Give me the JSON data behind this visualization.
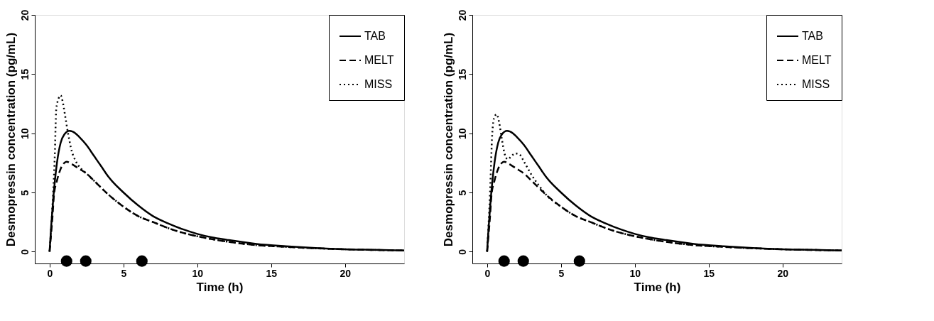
{
  "chart_data": [
    {
      "type": "line",
      "xlabel": "Time (h)",
      "ylabel": "Desmopressin concentration (pg/mL)",
      "xlim": [
        -1,
        24
      ],
      "ylim": [
        -1,
        20
      ],
      "xticks": [
        0,
        5,
        10,
        15,
        20
      ],
      "yticks": [
        0,
        5,
        10,
        15,
        20
      ],
      "grid": false,
      "legend": "top right",
      "marker": "none",
      "series": [
        {
          "name": "TAB",
          "color": "#000000",
          "line_style": "solid",
          "x": [
            0,
            0.1,
            0.25,
            0.5,
            0.75,
            1,
            1.35,
            1.75,
            2,
            2.5,
            3,
            3.5,
            4,
            5,
            6,
            7,
            8,
            9,
            10,
            11,
            12,
            14,
            16,
            18,
            20,
            22,
            24
          ],
          "values": [
            0,
            2,
            4.5,
            7.5,
            9.2,
            9.9,
            10.2,
            10,
            9.7,
            9,
            8.1,
            7.2,
            6.3,
            5,
            3.9,
            3,
            2.4,
            1.9,
            1.5,
            1.2,
            1,
            0.65,
            0.45,
            0.3,
            0.2,
            0.15,
            0.1
          ]
        },
        {
          "name": "MELT",
          "color": "#000000",
          "line_style": "dashed",
          "x": [
            0,
            0.2,
            0.3,
            0.5,
            0.75,
            1,
            1.15,
            1.5,
            2,
            2.5,
            3,
            4,
            5,
            6,
            7,
            8,
            9,
            10,
            11,
            12,
            14,
            16,
            18,
            20,
            22,
            24
          ],
          "values": [
            0,
            3,
            4.8,
            6,
            7,
            7.5,
            7.6,
            7.4,
            7,
            6.6,
            6,
            4.8,
            3.8,
            3,
            2.5,
            2,
            1.6,
            1.3,
            1.05,
            0.85,
            0.55,
            0.4,
            0.28,
            0.2,
            0.14,
            0.1
          ]
        },
        {
          "name": "MISS",
          "color": "#000000",
          "line_style": "dotted",
          "x": [
            0,
            0.2,
            0.35,
            0.45,
            0.6,
            0.75,
            0.9,
            1.05,
            1.25,
            1.5,
            1.75,
            2,
            2.5,
            3,
            4,
            5,
            6,
            7,
            8,
            9,
            10,
            11,
            12,
            14,
            16,
            18,
            20,
            22,
            24
          ],
          "values": [
            0,
            4,
            8,
            12,
            12.9,
            13.2,
            12.6,
            11.5,
            10,
            8.5,
            7.7,
            7.2,
            6.6,
            6,
            4.8,
            3.8,
            3,
            2.5,
            2,
            1.6,
            1.3,
            1.05,
            0.85,
            0.55,
            0.4,
            0.28,
            0.2,
            0.14,
            0.1
          ]
        },
        {
          "type": "scatter",
          "color": "#000000",
          "marker": "circle",
          "x": [
            1.15,
            2.45,
            6.25
          ],
          "values": [
            -0.8,
            -0.8,
            -0.8
          ]
        }
      ]
    },
    {
      "type": "line",
      "xlabel": "Time (h)",
      "ylabel": "Desmopressin concentration (pg/mL)",
      "xlim": [
        -1,
        24
      ],
      "ylim": [
        -1,
        20
      ],
      "xticks": [
        0,
        5,
        10,
        15,
        20
      ],
      "yticks": [
        0,
        5,
        10,
        15,
        20
      ],
      "grid": false,
      "legend": "top right",
      "marker": "none",
      "series": [
        {
          "name": "TAB",
          "color": "#000000",
          "line_style": "solid",
          "x": [
            0,
            0.1,
            0.25,
            0.5,
            0.75,
            1,
            1.35,
            1.75,
            2,
            2.5,
            3,
            3.5,
            4,
            5,
            6,
            7,
            8,
            9,
            10,
            11,
            12,
            14,
            16,
            18,
            20,
            22,
            24
          ],
          "values": [
            0,
            2,
            4.5,
            7.5,
            9.2,
            9.9,
            10.2,
            10,
            9.7,
            9,
            8.1,
            7.2,
            6.3,
            5,
            3.9,
            3,
            2.4,
            1.9,
            1.5,
            1.2,
            1,
            0.65,
            0.45,
            0.3,
            0.2,
            0.15,
            0.1
          ]
        },
        {
          "name": "MELT",
          "color": "#000000",
          "line_style": "dashed",
          "x": [
            0,
            0.2,
            0.3,
            0.5,
            0.75,
            1,
            1.15,
            1.5,
            2,
            2.5,
            3,
            4,
            5,
            6,
            7,
            8,
            9,
            10,
            11,
            12,
            14,
            16,
            18,
            20,
            22,
            24
          ],
          "values": [
            0,
            3,
            4.8,
            6,
            7,
            7.5,
            7.6,
            7.4,
            7,
            6.6,
            6,
            4.8,
            3.8,
            3,
            2.5,
            2,
            1.6,
            1.3,
            1.05,
            0.85,
            0.55,
            0.4,
            0.28,
            0.2,
            0.14,
            0.1
          ]
        },
        {
          "name": "MISS",
          "color": "#000000",
          "line_style": "dotted",
          "x": [
            0,
            0.2,
            0.35,
            0.5,
            0.65,
            0.8,
            1,
            1.2,
            1.4,
            1.6,
            1.9,
            2.2,
            2.5,
            3,
            3.5,
            4,
            5,
            6,
            7,
            8,
            9,
            10,
            11,
            12,
            14,
            16,
            18,
            20,
            22,
            24
          ],
          "values": [
            0,
            5,
            10,
            11.4,
            11.6,
            11,
            9.5,
            8.2,
            7.8,
            8,
            8.3,
            8.2,
            7.6,
            6.5,
            5.6,
            4.8,
            3.8,
            3,
            2.5,
            2,
            1.6,
            1.3,
            1.05,
            0.85,
            0.55,
            0.4,
            0.28,
            0.2,
            0.14,
            0.1
          ]
        },
        {
          "type": "scatter",
          "color": "#000000",
          "marker": "circle",
          "x": [
            1.15,
            2.45,
            6.25
          ],
          "values": [
            -0.8,
            -0.8,
            -0.8
          ]
        }
      ]
    }
  ]
}
